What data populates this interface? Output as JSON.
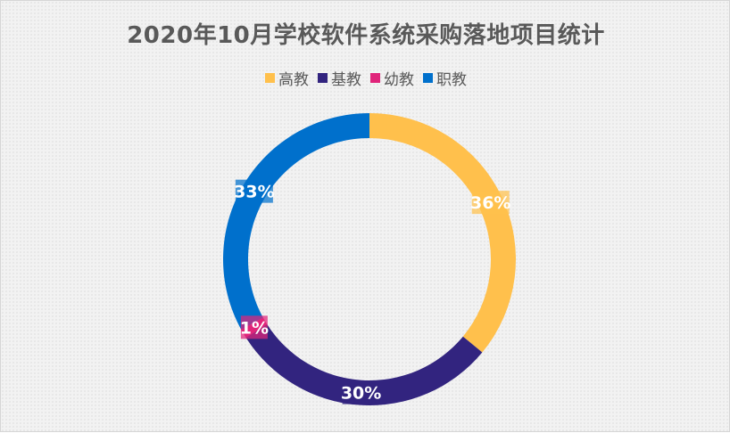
{
  "chart_data": {
    "type": "pie",
    "title": "2020年10月学校软件系统采购落地项目统计",
    "style": "donut",
    "legend_position": "top",
    "grid": false,
    "categories": [
      "高教",
      "基教",
      "幼教",
      "职教"
    ],
    "values": [
      36,
      30,
      1,
      33
    ],
    "labels": [
      "36%",
      "30%",
      "1%",
      "33%"
    ],
    "colors": [
      "#FFC04C",
      "#32247F",
      "#E0247A",
      "#0070CC"
    ]
  }
}
